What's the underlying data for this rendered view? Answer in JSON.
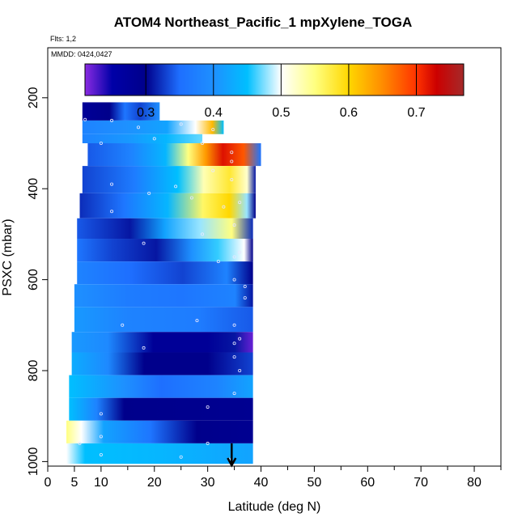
{
  "title": "ATOM4 Northeast_Pacific_1 mpXylene_TOGA",
  "flights_label": "Flts: 1,2",
  "dates_label": "MMDD: 0424,0427",
  "chart_data": {
    "type": "heatmap",
    "title": "ATOM4 Northeast_Pacific_1 mpXylene_TOGA",
    "xlabel": "Latitude (deg N)",
    "ylabel": "PSXC (mbar)",
    "xlim": [
      0,
      85
    ],
    "ylim": [
      1010,
      90
    ],
    "x_ticks": [
      0,
      5,
      10,
      20,
      30,
      40,
      50,
      60,
      70,
      80
    ],
    "y_ticks": [
      200,
      400,
      600,
      800,
      1000
    ],
    "color_scale": {
      "range": [
        0.21,
        0.77
      ],
      "ticks": [
        0.3,
        0.4,
        0.5,
        0.6,
        0.7
      ],
      "stops": [
        {
          "v": 0.21,
          "c": "#8a2be2"
        },
        {
          "v": 0.25,
          "c": "#0000a8"
        },
        {
          "v": 0.3,
          "c": "#00008b"
        },
        {
          "v": 0.35,
          "c": "#1e6fff"
        },
        {
          "v": 0.4,
          "c": "#1e90ff"
        },
        {
          "v": 0.45,
          "c": "#00bfff"
        },
        {
          "v": 0.5,
          "c": "#ffffff"
        },
        {
          "v": 0.55,
          "c": "#ffff80"
        },
        {
          "v": 0.6,
          "c": "#ffd700"
        },
        {
          "v": 0.65,
          "c": "#ff8c00"
        },
        {
          "v": 0.7,
          "c": "#ff3300"
        },
        {
          "v": 0.73,
          "c": "#cc0000"
        },
        {
          "v": 0.77,
          "c": "#a52a2a"
        }
      ]
    },
    "rows": [
      {
        "p0": 210,
        "p1": 250,
        "x0": 6.5,
        "x1": 21,
        "stops": [
          [
            0,
            0.28
          ],
          [
            0.35,
            0.3
          ],
          [
            0.55,
            0.36
          ],
          [
            0.75,
            0.33
          ],
          [
            1,
            0.4
          ]
        ]
      },
      {
        "p0": 250,
        "p1": 280,
        "x0": 6.5,
        "x1": 33,
        "stops": [
          [
            0,
            0.38
          ],
          [
            0.3,
            0.4
          ],
          [
            0.6,
            0.42
          ],
          [
            0.8,
            0.5
          ],
          [
            0.92,
            0.62
          ],
          [
            1,
            0.45
          ]
        ]
      },
      {
        "p0": 280,
        "p1": 300,
        "x0": 6.5,
        "x1": 29,
        "stops": [
          [
            0,
            0.38
          ],
          [
            0.4,
            0.41
          ],
          [
            0.7,
            0.44
          ],
          [
            1,
            0.47
          ]
        ]
      },
      {
        "p0": 300,
        "p1": 350,
        "x0": 7.5,
        "x1": 40,
        "stops": [
          [
            0,
            0.34
          ],
          [
            0.25,
            0.38
          ],
          [
            0.45,
            0.44
          ],
          [
            0.58,
            0.55
          ],
          [
            0.68,
            0.64
          ],
          [
            0.78,
            0.72
          ],
          [
            0.9,
            0.68
          ],
          [
            1,
            0.36
          ]
        ]
      },
      {
        "p0": 350,
        "p1": 410,
        "x0": 6.5,
        "x1": 39,
        "stops": [
          [
            0,
            0.33
          ],
          [
            0.3,
            0.37
          ],
          [
            0.55,
            0.45
          ],
          [
            0.7,
            0.53
          ],
          [
            0.85,
            0.58
          ],
          [
            0.95,
            0.52
          ],
          [
            1,
            0.31
          ]
        ]
      },
      {
        "p0": 410,
        "p1": 465,
        "x0": 6.0,
        "x1": 39,
        "stops": [
          [
            0,
            0.32
          ],
          [
            0.25,
            0.36
          ],
          [
            0.5,
            0.44
          ],
          [
            0.7,
            0.56
          ],
          [
            0.85,
            0.6
          ],
          [
            0.95,
            0.48
          ],
          [
            1,
            0.3
          ]
        ]
      },
      {
        "p0": 465,
        "p1": 510,
        "x0": 5.5,
        "x1": 38.5,
        "stops": [
          [
            0,
            0.34
          ],
          [
            0.3,
            0.31
          ],
          [
            0.5,
            0.42
          ],
          [
            0.7,
            0.48
          ],
          [
            0.88,
            0.55
          ],
          [
            1,
            0.32
          ]
        ]
      },
      {
        "p0": 510,
        "p1": 560,
        "x0": 5.5,
        "x1": 38.5,
        "stops": [
          [
            0,
            0.36
          ],
          [
            0.2,
            0.33
          ],
          [
            0.45,
            0.31
          ],
          [
            0.65,
            0.4
          ],
          [
            0.8,
            0.46
          ],
          [
            0.95,
            0.5
          ],
          [
            1,
            0.3
          ]
        ]
      },
      {
        "p0": 560,
        "p1": 610,
        "x0": 5.5,
        "x1": 38.5,
        "stops": [
          [
            0,
            0.38
          ],
          [
            0.3,
            0.35
          ],
          [
            0.6,
            0.33
          ],
          [
            0.85,
            0.38
          ],
          [
            1,
            0.3
          ]
        ]
      },
      {
        "p0": 610,
        "p1": 660,
        "x0": 5.0,
        "x1": 38.5,
        "stops": [
          [
            0,
            0.4
          ],
          [
            0.3,
            0.37
          ],
          [
            0.6,
            0.36
          ],
          [
            0.9,
            0.38
          ],
          [
            1,
            0.31
          ]
        ]
      },
      {
        "p0": 660,
        "p1": 715,
        "x0": 5.0,
        "x1": 38.5,
        "stops": [
          [
            0,
            0.41
          ],
          [
            0.3,
            0.38
          ],
          [
            0.7,
            0.37
          ],
          [
            1,
            0.34
          ]
        ]
      },
      {
        "p0": 715,
        "p1": 760,
        "x0": 4.5,
        "x1": 38.5,
        "stops": [
          [
            0,
            0.41
          ],
          [
            0.2,
            0.39
          ],
          [
            0.45,
            0.28
          ],
          [
            0.75,
            0.28
          ],
          [
            0.9,
            0.31
          ],
          [
            1,
            0.22
          ]
        ]
      },
      {
        "p0": 760,
        "p1": 810,
        "x0": 4.5,
        "x1": 38.5,
        "stops": [
          [
            0,
            0.43
          ],
          [
            0.2,
            0.39
          ],
          [
            0.4,
            0.3
          ],
          [
            0.75,
            0.3
          ],
          [
            1,
            0.33
          ]
        ]
      },
      {
        "p0": 810,
        "p1": 860,
        "x0": 4.0,
        "x1": 38.5,
        "stops": [
          [
            0,
            0.45
          ],
          [
            0.3,
            0.4
          ],
          [
            0.5,
            0.35
          ],
          [
            0.8,
            0.38
          ],
          [
            1,
            0.42
          ]
        ]
      },
      {
        "p0": 860,
        "p1": 910,
        "x0": 4.0,
        "x1": 38.5,
        "stops": [
          [
            0,
            0.45
          ],
          [
            0.15,
            0.38
          ],
          [
            0.3,
            0.3
          ],
          [
            1,
            0.29
          ]
        ]
      },
      {
        "p0": 910,
        "p1": 960,
        "x0": 3.5,
        "x1": 38.5,
        "stops": [
          [
            0,
            0.55
          ],
          [
            0.08,
            0.5
          ],
          [
            0.2,
            0.42
          ],
          [
            0.45,
            0.36
          ],
          [
            0.7,
            0.3
          ],
          [
            1,
            0.29
          ]
        ]
      },
      {
        "p0": 960,
        "p1": 1005,
        "x0": 3.5,
        "x1": 38.5,
        "stops": [
          [
            0,
            0.5
          ],
          [
            0.1,
            0.45
          ],
          [
            0.5,
            0.44
          ],
          [
            1,
            0.42
          ]
        ]
      }
    ],
    "points": [
      [
        7,
        248
      ],
      [
        12,
        250
      ],
      [
        17,
        265
      ],
      [
        25,
        258
      ],
      [
        31,
        270
      ],
      [
        10,
        300
      ],
      [
        20,
        290
      ],
      [
        29,
        300
      ],
      [
        34.5,
        320
      ],
      [
        34.5,
        340
      ],
      [
        12,
        390
      ],
      [
        19,
        410
      ],
      [
        24,
        395
      ],
      [
        31,
        360
      ],
      [
        34.5,
        380
      ],
      [
        12,
        450
      ],
      [
        27,
        420
      ],
      [
        33,
        440
      ],
      [
        36,
        430
      ],
      [
        18,
        520
      ],
      [
        29,
        500
      ],
      [
        35,
        480
      ],
      [
        32,
        560
      ],
      [
        35,
        550
      ],
      [
        36,
        540
      ],
      [
        35,
        600
      ],
      [
        37,
        615
      ],
      [
        37,
        640
      ],
      [
        14,
        700
      ],
      [
        28,
        690
      ],
      [
        35,
        700
      ],
      [
        18,
        750
      ],
      [
        35,
        740
      ],
      [
        36,
        730
      ],
      [
        35,
        770
      ],
      [
        36,
        800
      ],
      [
        10,
        895
      ],
      [
        30,
        880
      ],
      [
        35,
        850
      ],
      [
        10,
        945
      ],
      [
        30,
        960
      ],
      [
        6,
        960
      ],
      [
        10,
        985
      ],
      [
        25,
        990
      ],
      [
        34,
        995
      ]
    ],
    "arrow_lat": 34.5
  }
}
